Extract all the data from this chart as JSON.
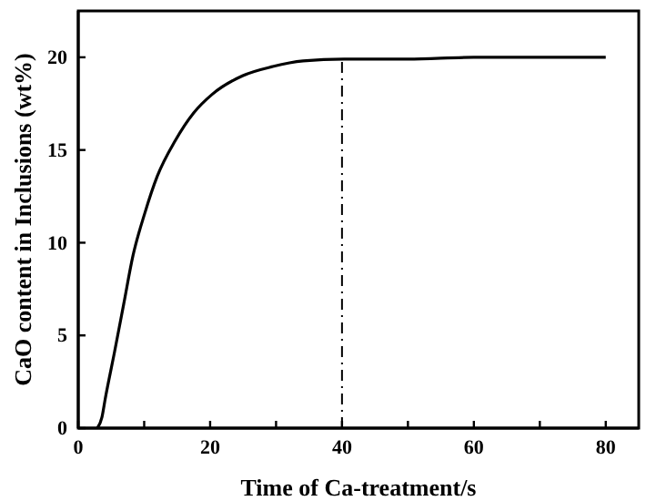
{
  "chart_data": {
    "type": "line",
    "xlabel": "Time of Ca-treatment/s",
    "ylabel": "CaO content in Inclusions (wt%)",
    "xlim": [
      0,
      85
    ],
    "xticks": [
      0,
      {
        "value": 10,
        "label": null
      },
      20,
      {
        "value": 30,
        "label": null
      },
      40,
      {
        "value": 50,
        "label": null
      },
      60,
      {
        "value": 70,
        "label": null
      },
      80
    ],
    "ylim": [
      0,
      22.5
    ],
    "yticks": [
      0,
      5,
      10,
      15,
      20
    ],
    "grid": false,
    "marker": "none",
    "line_style": "solid",
    "ref_lines": [
      {
        "axis": "x",
        "value": 40,
        "line_style": "dashed",
        "color": "#000000"
      }
    ],
    "series": [
      {
        "color": "#000000",
        "x": [
          2.9,
          3.6,
          4.1,
          5.5,
          6.9,
          8.3,
          10.1,
          12,
          14.7,
          17.5,
          20.3,
          24.9,
          29.5,
          34.1,
          40.3,
          50,
          60,
          70,
          80
        ],
        "values": [
          0,
          0.6,
          1.6,
          4.1,
          6.7,
          9.3,
          11.6,
          13.6,
          15.5,
          17,
          18,
          19,
          19.5,
          19.8,
          19.9,
          19.9,
          20,
          20,
          20
        ]
      }
    ]
  }
}
